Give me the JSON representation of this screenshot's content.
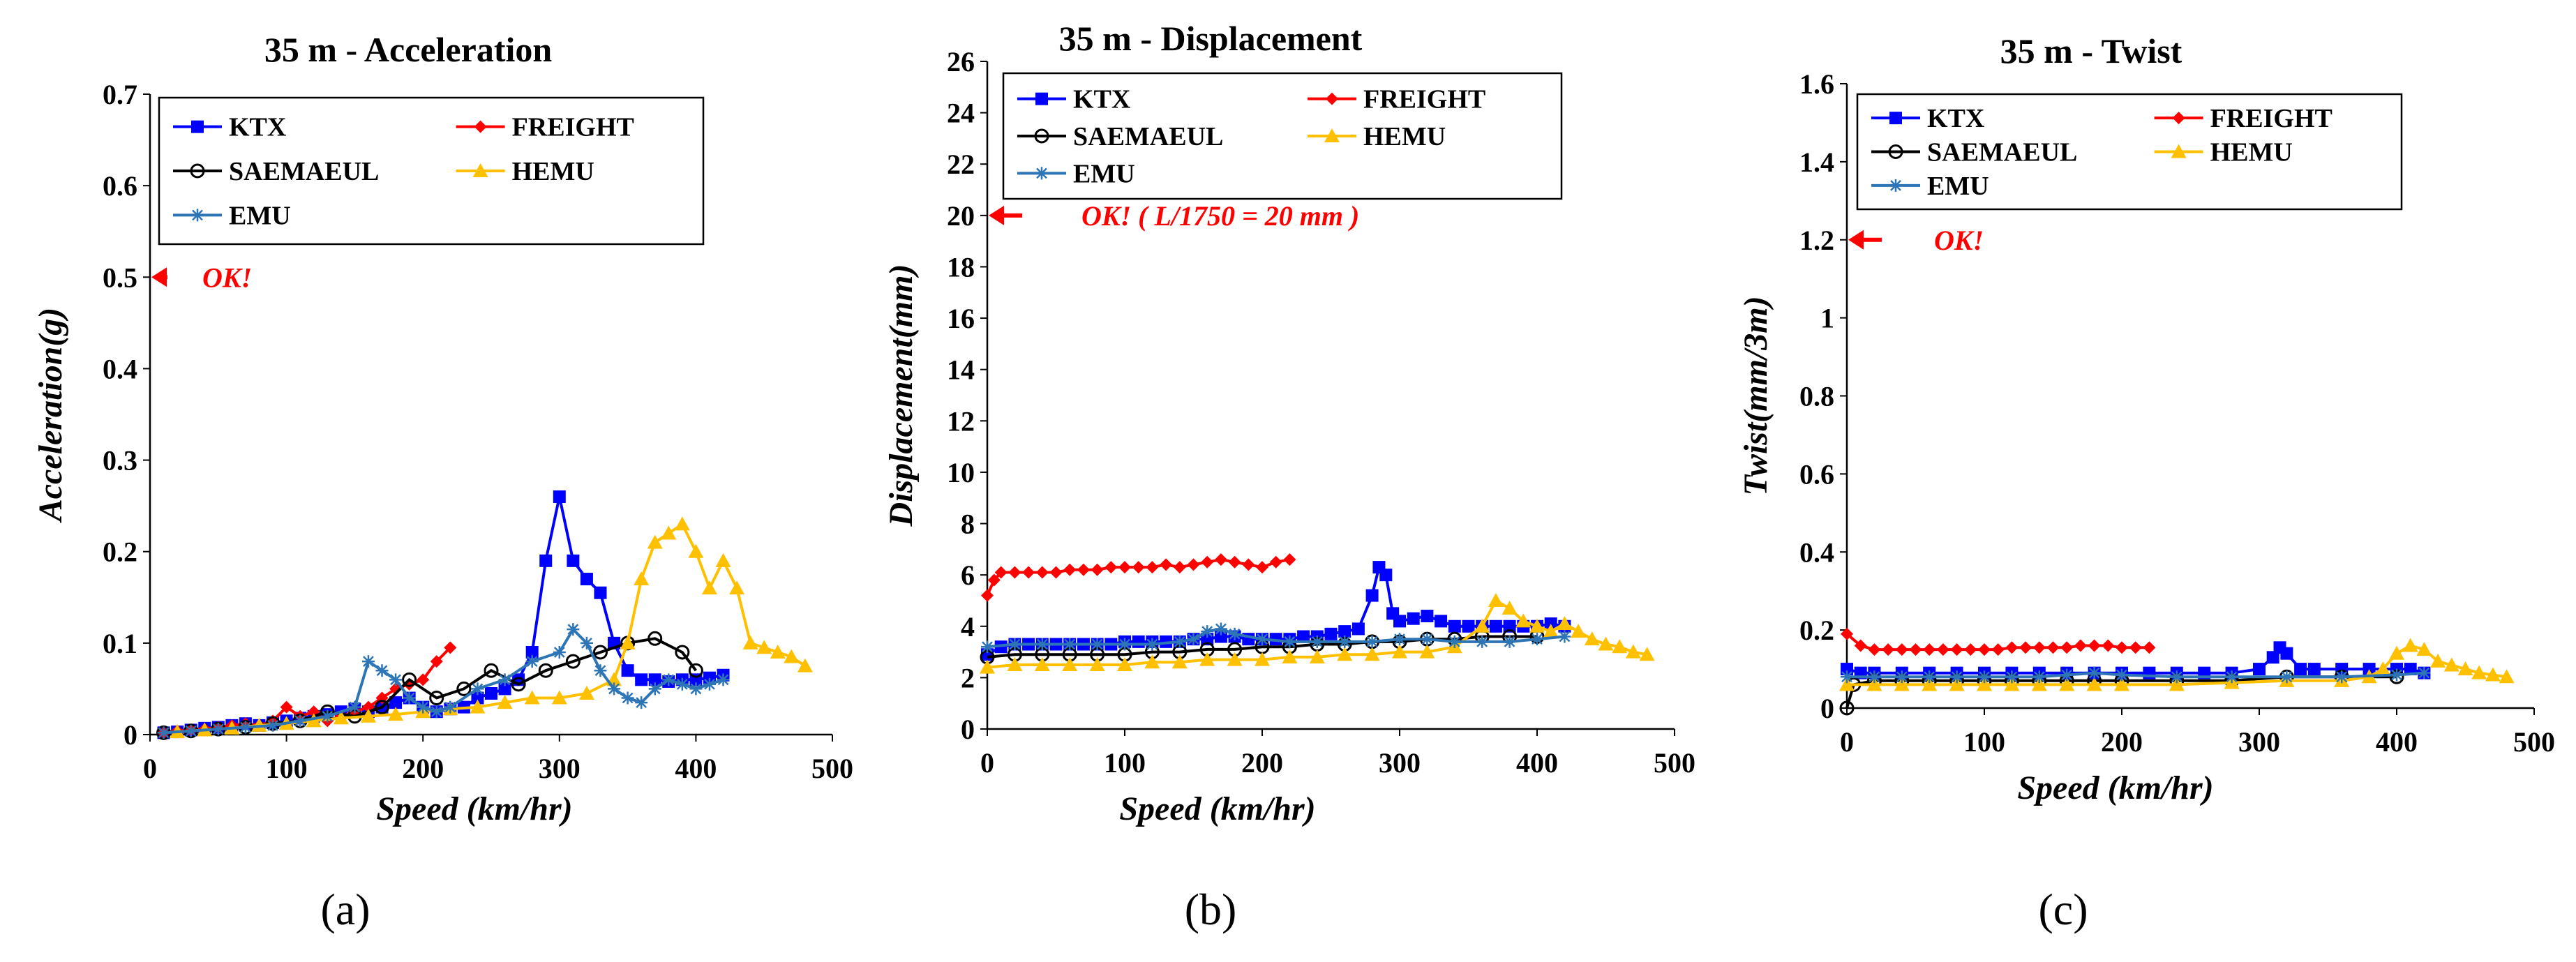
{
  "figure": {
    "panel_labels": [
      "(a)",
      "(b)",
      "(c)"
    ]
  },
  "chart_data": [
    {
      "type": "line",
      "title": "35 m - Acceleration",
      "xlabel": "Speed (km/hr)",
      "ylabel": "Acceleration(g)",
      "xlim": [
        0,
        500
      ],
      "ylim": [
        0,
        0.7
      ],
      "xticks": [
        0,
        100,
        200,
        300,
        400,
        500
      ],
      "yticks": [
        0,
        0.1,
        0.2,
        0.3,
        0.4,
        0.5,
        0.6,
        0.7
      ],
      "ytick_labels": [
        "0",
        "0.1",
        "0.2",
        "0.3",
        "0.4",
        "0.5",
        "0.6",
        "0.7"
      ],
      "grid": false,
      "limit": {
        "label": "OK!",
        "value": 0.5
      },
      "legend": [
        "KTX",
        "FREIGHT",
        "SAEMAEUL",
        "HEMU",
        "EMU"
      ],
      "series": [
        {
          "name": "KTX",
          "color": "#0000ff",
          "marker": "square",
          "x": [
            10,
            20,
            30,
            40,
            50,
            60,
            70,
            80,
            90,
            100,
            110,
            120,
            130,
            140,
            150,
            160,
            170,
            180,
            190,
            200,
            210,
            220,
            230,
            240,
            250,
            260,
            270,
            280,
            290,
            300,
            310,
            320,
            330,
            340,
            350,
            360,
            370,
            380,
            390,
            400,
            410,
            420
          ],
          "y": [
            0.002,
            0.003,
            0.005,
            0.007,
            0.008,
            0.01,
            0.012,
            0.01,
            0.013,
            0.015,
            0.018,
            0.02,
            0.022,
            0.025,
            0.028,
            0.025,
            0.03,
            0.035,
            0.04,
            0.03,
            0.025,
            0.028,
            0.03,
            0.04,
            0.045,
            0.05,
            0.06,
            0.09,
            0.19,
            0.26,
            0.19,
            0.17,
            0.155,
            0.1,
            0.07,
            0.06,
            0.06,
            0.058,
            0.06,
            0.06,
            0.062,
            0.065
          ]
        },
        {
          "name": "FREIGHT",
          "color": "#ff0000",
          "marker": "diamond",
          "x": [
            10,
            20,
            30,
            40,
            50,
            60,
            70,
            80,
            90,
            100,
            110,
            120,
            130,
            140,
            150,
            160,
            170,
            180,
            190,
            200,
            210,
            220
          ],
          "y": [
            0.002,
            0.004,
            0.005,
            0.006,
            0.008,
            0.01,
            0.012,
            0.01,
            0.015,
            0.03,
            0.02,
            0.025,
            0.015,
            0.02,
            0.025,
            0.03,
            0.04,
            0.05,
            0.055,
            0.06,
            0.08,
            0.095
          ]
        },
        {
          "name": "SAEMAEUL",
          "color": "#000000",
          "marker": "circle",
          "x": [
            10,
            30,
            50,
            70,
            90,
            110,
            130,
            150,
            170,
            190,
            210,
            230,
            250,
            270,
            290,
            310,
            330,
            350,
            370,
            390,
            400
          ],
          "y": [
            0.002,
            0.004,
            0.006,
            0.008,
            0.012,
            0.015,
            0.025,
            0.02,
            0.03,
            0.06,
            0.04,
            0.05,
            0.07,
            0.055,
            0.07,
            0.08,
            0.09,
            0.1,
            0.105,
            0.09,
            0.07
          ]
        },
        {
          "name": "HEMU",
          "color": "#ffc000",
          "marker": "triangle",
          "x": [
            20,
            40,
            60,
            80,
            100,
            120,
            140,
            160,
            180,
            200,
            220,
            240,
            260,
            280,
            300,
            320,
            340,
            350,
            360,
            370,
            380,
            390,
            400,
            410,
            420,
            430,
            440,
            450,
            460,
            470,
            480
          ],
          "y": [
            0.003,
            0.005,
            0.007,
            0.01,
            0.012,
            0.015,
            0.018,
            0.02,
            0.022,
            0.025,
            0.028,
            0.03,
            0.035,
            0.04,
            0.04,
            0.045,
            0.06,
            0.1,
            0.17,
            0.21,
            0.22,
            0.23,
            0.2,
            0.16,
            0.19,
            0.16,
            0.1,
            0.095,
            0.09,
            0.085,
            0.075
          ]
        },
        {
          "name": "EMU",
          "color": "#2e75b6",
          "marker": "star",
          "x": [
            10,
            30,
            50,
            70,
            90,
            110,
            130,
            150,
            160,
            170,
            180,
            190,
            200,
            210,
            220,
            240,
            260,
            280,
            300,
            310,
            320,
            330,
            340,
            350,
            360,
            370,
            380,
            390,
            400,
            410,
            420
          ],
          "y": [
            0.002,
            0.004,
            0.006,
            0.008,
            0.01,
            0.015,
            0.02,
            0.03,
            0.08,
            0.07,
            0.06,
            0.04,
            0.03,
            0.025,
            0.03,
            0.05,
            0.06,
            0.08,
            0.09,
            0.115,
            0.1,
            0.07,
            0.05,
            0.04,
            0.035,
            0.05,
            0.06,
            0.055,
            0.05,
            0.055,
            0.06
          ]
        }
      ]
    },
    {
      "type": "line",
      "title": "35 m - Displacement",
      "xlabel": "Speed (km/hr)",
      "ylabel": "Displacement(mm)",
      "xlim": [
        0,
        500
      ],
      "ylim": [
        0,
        26
      ],
      "xticks": [
        0,
        100,
        200,
        300,
        400,
        500
      ],
      "yticks": [
        0,
        2,
        4,
        6,
        8,
        10,
        12,
        14,
        16,
        18,
        20,
        22,
        24,
        26
      ],
      "ytick_labels": [
        "0",
        "2",
        "4",
        "6",
        "8",
        "10",
        "12",
        "14",
        "16",
        "18",
        "20",
        "22",
        "24",
        "26"
      ],
      "grid": false,
      "limit": {
        "label": "OK! ( L/1750 = 20 mm )",
        "value": 20
      },
      "legend": [
        "KTX",
        "FREIGHT",
        "SAEMAEUL",
        "HEMU",
        "EMU"
      ],
      "series": [
        {
          "name": "KTX",
          "color": "#0000ff",
          "marker": "square",
          "x": [
            0,
            10,
            20,
            30,
            40,
            50,
            60,
            70,
            80,
            90,
            100,
            110,
            120,
            130,
            140,
            150,
            160,
            170,
            180,
            190,
            200,
            210,
            220,
            230,
            240,
            250,
            260,
            270,
            280,
            285,
            290,
            295,
            300,
            310,
            320,
            330,
            340,
            350,
            360,
            370,
            380,
            390,
            400,
            410,
            420
          ],
          "y": [
            2.9,
            3.2,
            3.3,
            3.3,
            3.3,
            3.3,
            3.3,
            3.3,
            3.3,
            3.3,
            3.4,
            3.4,
            3.4,
            3.4,
            3.4,
            3.5,
            3.5,
            3.6,
            3.6,
            3.5,
            3.5,
            3.5,
            3.5,
            3.6,
            3.6,
            3.7,
            3.8,
            3.9,
            5.2,
            6.3,
            6.0,
            4.5,
            4.2,
            4.3,
            4.4,
            4.2,
            4.0,
            4.0,
            4.0,
            4.0,
            4.0,
            4.0,
            4.0,
            4.1,
            4.0
          ]
        },
        {
          "name": "FREIGHT",
          "color": "#ff0000",
          "marker": "diamond",
          "x": [
            0,
            5,
            10,
            20,
            30,
            40,
            50,
            60,
            70,
            80,
            90,
            100,
            110,
            120,
            130,
            140,
            150,
            160,
            170,
            180,
            190,
            200,
            210,
            220
          ],
          "y": [
            5.2,
            5.8,
            6.1,
            6.1,
            6.1,
            6.1,
            6.1,
            6.2,
            6.2,
            6.2,
            6.3,
            6.3,
            6.3,
            6.3,
            6.4,
            6.3,
            6.4,
            6.5,
            6.6,
            6.5,
            6.4,
            6.3,
            6.5,
            6.6
          ]
        },
        {
          "name": "SAEMAEUL",
          "color": "#000000",
          "marker": "circle",
          "x": [
            0,
            20,
            40,
            60,
            80,
            100,
            120,
            140,
            160,
            180,
            200,
            220,
            240,
            260,
            280,
            300,
            320,
            340,
            360,
            380,
            400
          ],
          "y": [
            2.8,
            2.9,
            2.9,
            2.9,
            2.9,
            2.9,
            3.0,
            3.0,
            3.1,
            3.1,
            3.2,
            3.2,
            3.3,
            3.3,
            3.4,
            3.4,
            3.5,
            3.5,
            3.6,
            3.6,
            3.6
          ]
        },
        {
          "name": "HEMU",
          "color": "#ffc000",
          "marker": "triangle",
          "x": [
            0,
            20,
            40,
            60,
            80,
            100,
            120,
            140,
            160,
            180,
            200,
            220,
            240,
            260,
            280,
            300,
            320,
            340,
            360,
            370,
            380,
            390,
            400,
            410,
            420,
            430,
            440,
            450,
            460,
            470,
            480
          ],
          "y": [
            2.4,
            2.5,
            2.5,
            2.5,
            2.5,
            2.5,
            2.6,
            2.6,
            2.7,
            2.7,
            2.7,
            2.8,
            2.8,
            2.9,
            2.9,
            3.0,
            3.0,
            3.2,
            4.0,
            5.0,
            4.7,
            4.2,
            4.0,
            3.8,
            4.1,
            3.8,
            3.5,
            3.3,
            3.2,
            3.0,
            2.9
          ]
        },
        {
          "name": "EMU",
          "color": "#2e75b6",
          "marker": "star",
          "x": [
            0,
            20,
            40,
            60,
            80,
            100,
            120,
            140,
            150,
            160,
            170,
            180,
            200,
            220,
            240,
            260,
            280,
            300,
            320,
            340,
            360,
            380,
            400,
            420
          ],
          "y": [
            3.2,
            3.3,
            3.3,
            3.3,
            3.3,
            3.3,
            3.3,
            3.4,
            3.5,
            3.8,
            3.9,
            3.7,
            3.5,
            3.4,
            3.4,
            3.4,
            3.4,
            3.5,
            3.5,
            3.4,
            3.4,
            3.4,
            3.5,
            3.6
          ]
        }
      ]
    },
    {
      "type": "line",
      "title": "35 m - Twist",
      "xlabel": "Speed (km/hr)",
      "ylabel": "Twist(mm/3m)",
      "xlim": [
        0,
        500
      ],
      "ylim": [
        0,
        1.6
      ],
      "xticks": [
        0,
        100,
        200,
        300,
        400,
        500
      ],
      "yticks": [
        0,
        0.2,
        0.4,
        0.6,
        0.8,
        1.0,
        1.2,
        1.4,
        1.6
      ],
      "ytick_labels": [
        "0",
        "0.2",
        "0.4",
        "0.6",
        "0.8",
        "1",
        "1.2",
        "1.4",
        "1.6"
      ],
      "grid": false,
      "limit": {
        "label": "OK!",
        "value": 1.2
      },
      "legend": [
        "KTX",
        "FREIGHT",
        "SAEMAEUL",
        "HEMU",
        "EMU"
      ],
      "series": [
        {
          "name": "KTX",
          "color": "#0000ff",
          "marker": "square",
          "x": [
            0,
            10,
            20,
            40,
            60,
            80,
            100,
            120,
            140,
            160,
            180,
            200,
            220,
            240,
            260,
            280,
            300,
            310,
            315,
            320,
            330,
            340,
            360,
            380,
            400,
            410,
            420
          ],
          "y": [
            0.1,
            0.09,
            0.09,
            0.09,
            0.09,
            0.09,
            0.09,
            0.09,
            0.09,
            0.09,
            0.09,
            0.09,
            0.09,
            0.09,
            0.09,
            0.09,
            0.1,
            0.13,
            0.155,
            0.14,
            0.1,
            0.1,
            0.1,
            0.1,
            0.1,
            0.1,
            0.09
          ]
        },
        {
          "name": "FREIGHT",
          "color": "#ff0000",
          "marker": "diamond",
          "x": [
            0,
            10,
            20,
            30,
            40,
            50,
            60,
            70,
            80,
            90,
            100,
            110,
            120,
            130,
            140,
            150,
            160,
            170,
            180,
            190,
            200,
            210,
            220
          ],
          "y": [
            0.19,
            0.16,
            0.15,
            0.15,
            0.15,
            0.15,
            0.15,
            0.15,
            0.15,
            0.15,
            0.15,
            0.15,
            0.155,
            0.155,
            0.155,
            0.155,
            0.155,
            0.16,
            0.16,
            0.16,
            0.155,
            0.155,
            0.155
          ]
        },
        {
          "name": "SAEMAEUL",
          "color": "#000000",
          "marker": "circle",
          "x": [
            0,
            5,
            20,
            40,
            60,
            80,
            100,
            120,
            140,
            160,
            180,
            200,
            240,
            280,
            320,
            360,
            400
          ],
          "y": [
            0.0,
            0.06,
            0.07,
            0.07,
            0.07,
            0.07,
            0.07,
            0.07,
            0.07,
            0.07,
            0.07,
            0.07,
            0.07,
            0.07,
            0.08,
            0.08,
            0.08
          ]
        },
        {
          "name": "HEMU",
          "color": "#ffc000",
          "marker": "triangle",
          "x": [
            0,
            20,
            40,
            60,
            80,
            100,
            120,
            140,
            160,
            180,
            200,
            240,
            280,
            320,
            360,
            380,
            390,
            400,
            410,
            420,
            430,
            440,
            450,
            460,
            470,
            480
          ],
          "y": [
            0.06,
            0.06,
            0.06,
            0.06,
            0.06,
            0.06,
            0.06,
            0.06,
            0.06,
            0.06,
            0.06,
            0.06,
            0.065,
            0.07,
            0.07,
            0.08,
            0.1,
            0.14,
            0.16,
            0.15,
            0.12,
            0.11,
            0.1,
            0.09,
            0.085,
            0.08
          ]
        },
        {
          "name": "EMU",
          "color": "#2e75b6",
          "marker": "star",
          "x": [
            0,
            20,
            40,
            60,
            80,
            100,
            120,
            140,
            160,
            180,
            200,
            240,
            280,
            320,
            360,
            400,
            420
          ],
          "y": [
            0.08,
            0.08,
            0.08,
            0.08,
            0.08,
            0.08,
            0.08,
            0.08,
            0.085,
            0.09,
            0.085,
            0.08,
            0.08,
            0.08,
            0.08,
            0.085,
            0.09
          ]
        }
      ]
    }
  ]
}
